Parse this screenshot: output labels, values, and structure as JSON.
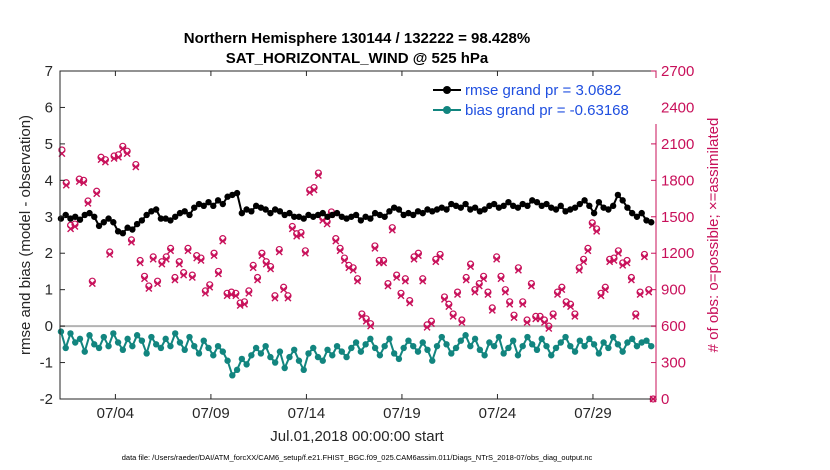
{
  "chart_data": {
    "type": "line",
    "title": "Northern Hemisphere 130144 / 132222 = 98.428%",
    "subtitle": "SAT_HORIZONTAL_WIND @ 525 hPa",
    "xlabel": "Jul.01,2018 00:00:00 start",
    "ylabel": "rmse and bias (model - observation)",
    "ylabel_right": "# of obs: o=possible; ×=assimilated",
    "footer": "data file: /Users/raeder/DAI/ATM_forcXX/CAM6_setup/f.e21.FHIST_BGC.f09_025.CAM6assim.011/Diags_NTrS_2018-07/obs_diag_output.nc",
    "xlim": [
      0.6,
      31.8
    ],
    "ylim": [
      -2,
      7
    ],
    "ylim_right": [
      0,
      2700
    ],
    "x_ticks": [
      3.5,
      8.5,
      13.5,
      18.5,
      23.5,
      28.5
    ],
    "x_tick_labels": [
      "07/04",
      "07/09",
      "07/14",
      "07/19",
      "07/24",
      "07/29"
    ],
    "y_ticks": [
      -2,
      -1,
      0,
      1,
      2,
      3,
      4,
      5,
      6,
      7
    ],
    "y_tick_labels": [
      "-2",
      "-1",
      "0",
      "1",
      "2",
      "3",
      "4",
      "5",
      "6",
      "7"
    ],
    "y_right_ticks": [
      0,
      300,
      600,
      900,
      1200,
      1500,
      1800,
      2100,
      2400,
      2700
    ],
    "y_right_tick_labels": [
      "0",
      "300",
      "600",
      "900",
      "1200",
      "1500",
      "1800",
      "2100",
      "2400",
      "2700"
    ],
    "colors": {
      "rmse": "#000000",
      "bias": "#12857f",
      "obs": "#c8105a",
      "zero_line": "#b3b3b3",
      "legend_text": "#1f4fe0"
    },
    "series": [
      {
        "name": "rmse grand pr = 3.0682",
        "values": [
          2.95,
          3.05,
          2.95,
          3.0,
          2.92,
          3.05,
          3.1,
          3.0,
          2.75,
          2.85,
          2.95,
          2.85,
          2.6,
          2.55,
          2.7,
          2.65,
          2.8,
          2.9,
          3.05,
          3.15,
          3.2,
          2.95,
          2.95,
          2.9,
          3.0,
          3.1,
          3.15,
          3.05,
          3.25,
          3.35,
          3.3,
          3.4,
          3.3,
          3.45,
          3.35,
          3.55,
          3.6,
          3.65,
          3.1,
          3.2,
          3.15,
          3.3,
          3.25,
          3.2,
          3.1,
          3.2,
          3.15,
          3.05,
          3.1,
          3.0,
          3.0,
          2.95,
          3.05,
          3.0,
          3.05,
          3.1,
          3.0,
          3.05,
          3.1,
          3.0,
          2.95,
          3.0,
          3.05,
          2.9,
          3.0,
          2.95,
          3.1,
          3.05,
          3.0,
          3.15,
          3.25,
          3.2,
          3.05,
          3.1,
          3.05,
          3.15,
          3.1,
          3.2,
          3.15,
          3.2,
          3.25,
          3.2,
          3.35,
          3.3,
          3.25,
          3.35,
          3.2,
          3.25,
          3.15,
          3.2,
          3.3,
          3.35,
          3.25,
          3.3,
          3.4,
          3.3,
          3.25,
          3.35,
          3.3,
          3.45,
          3.4,
          3.3,
          3.35,
          3.25,
          3.2,
          3.3,
          3.15,
          3.2,
          3.25,
          3.35,
          3.45,
          3.3,
          3.1,
          3.4,
          3.25,
          3.2,
          3.3,
          3.6,
          3.45,
          3.25,
          3.1,
          3.0,
          3.1,
          2.9,
          2.85
        ],
        "bias_values": [
          -0.15,
          -0.6,
          -0.2,
          -0.45,
          -0.35,
          -0.7,
          -0.25,
          -0.5,
          -0.6,
          -0.3,
          -0.55,
          -0.2,
          -0.45,
          -0.65,
          -0.35,
          -0.55,
          -0.25,
          -0.4,
          -0.75,
          -0.3,
          -0.5,
          -0.6,
          -0.35,
          -0.55,
          -0.2,
          -0.45,
          -0.65,
          -0.3,
          -0.55,
          -0.75,
          -0.4,
          -0.6,
          -0.8,
          -0.55,
          -0.7,
          -0.95,
          -1.35,
          -1.2,
          -0.9,
          -1.05,
          -0.8,
          -0.6,
          -0.75,
          -0.55,
          -0.85,
          -1.0,
          -0.7,
          -1.15,
          -0.85,
          -0.65,
          -0.95,
          -1.2,
          -0.75,
          -0.6,
          -0.85,
          -0.95,
          -0.65,
          -0.8,
          -0.55,
          -0.7,
          -0.85,
          -0.6,
          -0.45,
          -0.7,
          -0.5,
          -0.35,
          -0.6,
          -0.8,
          -0.55,
          -0.35,
          -0.75,
          -0.9,
          -0.6,
          -0.4,
          -0.55,
          -0.7,
          -0.45,
          -0.65,
          -0.95,
          -0.55,
          -0.3,
          -0.5,
          -0.75,
          -0.6,
          -0.4,
          -0.25,
          -0.55,
          -0.35,
          -0.65,
          -0.8,
          -0.45,
          -0.55,
          -0.3,
          -0.75,
          -0.6,
          -0.4,
          -0.8,
          -0.55,
          -0.3,
          -0.5,
          -0.65,
          -0.35,
          -0.55,
          -0.8,
          -0.6,
          -0.45,
          -0.3,
          -0.55,
          -0.7,
          -0.4,
          -0.55,
          -0.35,
          -0.5,
          -0.75,
          -0.45,
          -0.6,
          -0.3,
          -0.5,
          -0.7,
          -0.45,
          -0.35,
          -0.55,
          -0.45,
          -0.4,
          -0.55
        ]
      },
      {
        "name": "bias grand pr = -0.63168"
      }
    ],
    "obs_possible": [
      2050,
      1780,
      1430,
      1440,
      1810,
      1800,
      1630,
      970,
      1710,
      1990,
      1970,
      1210,
      2000,
      2010,
      2080,
      2040,
      1310,
      1930,
      1140,
      1010,
      930,
      1170,
      970,
      1130,
      1170,
      1240,
      1000,
      1130,
      1040,
      1240,
      1020,
      1180,
      1160,
      890,
      940,
      1200,
      1050,
      1320,
      870,
      880,
      870,
      790,
      800,
      890,
      1100,
      1000,
      1200,
      1130,
      1090,
      850,
      1230,
      920,
      850,
      1420,
      1360,
      1370,
      1220,
      1720,
      1740,
      1860,
      1490,
      1460,
      1540,
      1320,
      1240,
      1160,
      1100,
      1080,
      990,
      700,
      660,
      620,
      1260,
      1140,
      1140,
      950,
      1410,
      1020,
      870,
      990,
      810,
      1170,
      1200,
      990,
      610,
      640,
      1150,
      1190,
      840,
      780,
      700,
      880,
      650,
      1000,
      1110,
      900,
      950,
      1010,
      880,
      750,
      1170,
      1010,
      900,
      800,
      690,
      1080,
      800,
      650,
      950,
      680,
      680,
      650,
      600,
      700,
      880,
      920,
      800,
      780,
      700,
      1080,
      1150,
      1240,
      1450,
      1400,
      870,
      920,
      1150,
      1160,
      1220,
      1120,
      1140,
      1000,
      700,
      880,
      1190,
      900,
      0
    ],
    "obs_assimilated": [
      2020,
      1760,
      1400,
      1420,
      1790,
      1780,
      1610,
      950,
      1690,
      1970,
      1950,
      1190,
      1980,
      1990,
      2060,
      2020,
      1290,
      1910,
      1120,
      990,
      910,
      1150,
      950,
      1110,
      1150,
      1220,
      980,
      1110,
      1020,
      1220,
      1000,
      1160,
      1140,
      870,
      920,
      1180,
      1030,
      1300,
      850,
      860,
      850,
      770,
      780,
      870,
      1080,
      980,
      1180,
      1110,
      1070,
      830,
      1210,
      900,
      830,
      1400,
      1340,
      1350,
      1200,
      1700,
      1720,
      1840,
      1470,
      1440,
      1520,
      1300,
      1220,
      1140,
      1080,
      1060,
      970,
      680,
      640,
      600,
      1240,
      1120,
      1120,
      930,
      1390,
      1000,
      850,
      970,
      790,
      1150,
      1180,
      970,
      590,
      620,
      1130,
      1170,
      820,
      760,
      680,
      860,
      630,
      980,
      1090,
      880,
      930,
      990,
      860,
      730,
      1150,
      990,
      880,
      780,
      670,
      1060,
      780,
      630,
      930,
      660,
      660,
      630,
      580,
      680,
      860,
      900,
      780,
      760,
      680,
      1060,
      1130,
      1220,
      1430,
      1380,
      850,
      900,
      1130,
      1140,
      1200,
      1100,
      1120,
      980,
      680,
      860,
      1170,
      880,
      0
    ]
  }
}
